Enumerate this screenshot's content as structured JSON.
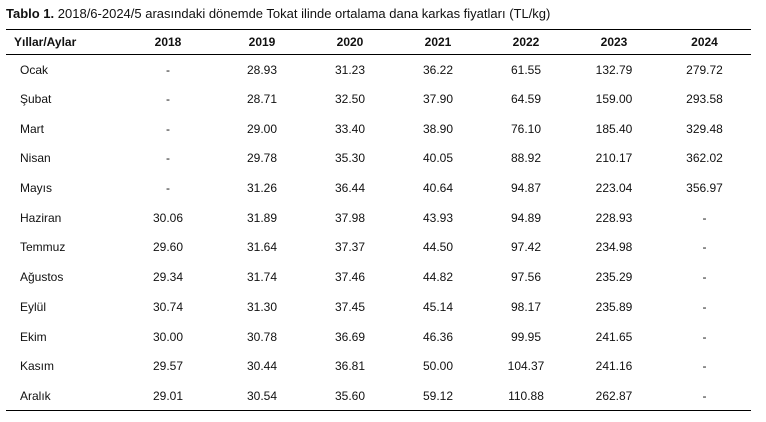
{
  "caption": {
    "label": "Tablo 1.",
    "text": " 2018/6-2024/5 arasındaki dönemde Tokat ilinde ortalama dana karkas fiyatları (TL/kg)"
  },
  "table": {
    "headers": [
      "Yıllar/Aylar",
      "2018",
      "2019",
      "2020",
      "2021",
      "2022",
      "2023",
      "2024"
    ],
    "rows": [
      [
        "Ocak",
        "-",
        "28.93",
        "31.23",
        "36.22",
        "61.55",
        "132.79",
        "279.72"
      ],
      [
        "Şubat",
        "-",
        "28.71",
        "32.50",
        "37.90",
        "64.59",
        "159.00",
        "293.58"
      ],
      [
        "Mart",
        "-",
        "29.00",
        "33.40",
        "38.90",
        "76.10",
        "185.40",
        "329.48"
      ],
      [
        "Nisan",
        "-",
        "29.78",
        "35.30",
        "40.05",
        "88.92",
        "210.17",
        "362.02"
      ],
      [
        "Mayıs",
        "-",
        "31.26",
        "36.44",
        "40.64",
        "94.87",
        "223.04",
        "356.97"
      ],
      [
        "Haziran",
        "30.06",
        "31.89",
        "37.98",
        "43.93",
        "94.89",
        "228.93",
        "-"
      ],
      [
        "Temmuz",
        "29.60",
        "31.64",
        "37.37",
        "44.50",
        "97.42",
        "234.98",
        "-"
      ],
      [
        "Ağustos",
        "29.34",
        "31.74",
        "37.46",
        "44.82",
        "97.56",
        "235.29",
        "-"
      ],
      [
        "Eylül",
        "30.74",
        "31.30",
        "37.45",
        "45.14",
        "98.17",
        "235.89",
        "-"
      ],
      [
        "Ekim",
        "30.00",
        "30.78",
        "36.69",
        "46.36",
        "99.95",
        "241.65",
        "-"
      ],
      [
        "Kasım",
        "29.57",
        "30.44",
        "36.81",
        "50.00",
        "104.37",
        "241.16",
        "-"
      ],
      [
        "Aralık",
        "29.01",
        "30.54",
        "35.60",
        "59.12",
        "110.88",
        "262.87",
        "-"
      ]
    ]
  }
}
